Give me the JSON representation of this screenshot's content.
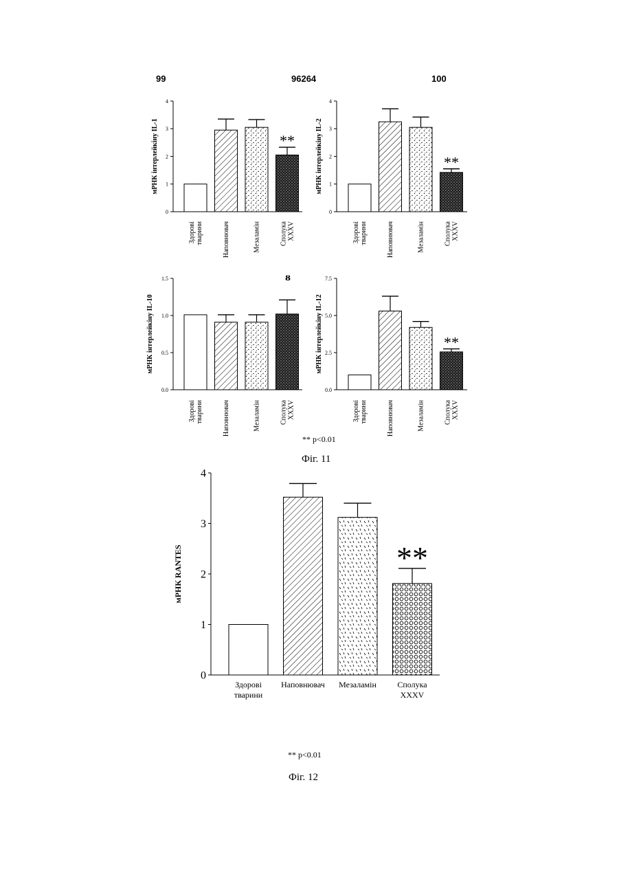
{
  "header": {
    "left_page": "99",
    "patent_number": "96264",
    "right_page": "100"
  },
  "fig11": {
    "caption": "Фіг. 11",
    "footnote": "** p<0.01",
    "stray_mark": "ᴕ"
  },
  "fig12": {
    "caption": "Фіг. 12",
    "footnote": "** p<0.01"
  },
  "chart_data": [
    {
      "id": "il1",
      "type": "bar",
      "ylabel": "мРНК інтерлейкіну IL-1",
      "ylim": [
        0,
        4
      ],
      "yticks": [
        "0",
        "1",
        "2",
        "3",
        "4"
      ],
      "ytick_values": [
        0,
        1,
        2,
        3,
        4
      ],
      "categories": [
        [
          "Здорові",
          "тварини"
        ],
        [
          "Наповнювач"
        ],
        [
          "Мезаламін"
        ],
        [
          "Сполука",
          "XXXV"
        ]
      ],
      "values": [
        1.0,
        2.95,
        3.05,
        2.05
      ],
      "errors": [
        0,
        0.4,
        0.28,
        0.28
      ],
      "significance": [
        "",
        "",
        "",
        "**"
      ],
      "patterns": [
        "white",
        "hatch",
        "dots",
        "dense"
      ]
    },
    {
      "id": "il2",
      "type": "bar",
      "ylabel": "мРНК інтерлейкіну IL-2",
      "ylim": [
        0,
        4
      ],
      "yticks": [
        "0",
        "1",
        "2",
        "3",
        "4"
      ],
      "ytick_values": [
        0,
        1,
        2,
        3,
        4
      ],
      "categories": [
        [
          "Здорові",
          "тварини"
        ],
        [
          "Наповнювач"
        ],
        [
          "Мезаламін"
        ],
        [
          "Сполука",
          "XXXV"
        ]
      ],
      "values": [
        1.0,
        3.25,
        3.05,
        1.42
      ],
      "errors": [
        0,
        0.47,
        0.37,
        0.13
      ],
      "significance": [
        "",
        "",
        "",
        "**"
      ],
      "patterns": [
        "white",
        "hatch",
        "dots",
        "dense"
      ]
    },
    {
      "id": "il10",
      "type": "bar",
      "ylabel": "мРНК інтерлейкіну IL-10",
      "ylim": [
        0,
        1.5
      ],
      "yticks": [
        "0.0",
        "0.5",
        "1.0",
        "1.5"
      ],
      "ytick_values": [
        0,
        0.5,
        1.0,
        1.5
      ],
      "categories": [
        [
          "Здорові",
          "тварини"
        ],
        [
          "Наповнювач"
        ],
        [
          "Мезаламін"
        ],
        [
          "Сполука",
          "XXXV"
        ]
      ],
      "values": [
        1.01,
        0.91,
        0.91,
        1.02
      ],
      "errors": [
        0,
        0.1,
        0.1,
        0.19
      ],
      "significance": [
        "",
        "",
        "",
        ""
      ],
      "patterns": [
        "white",
        "hatch",
        "dots",
        "dense"
      ]
    },
    {
      "id": "il12",
      "type": "bar",
      "ylabel": "мРНК інтерлейкіну IL-12",
      "ylim": [
        0,
        7.5
      ],
      "yticks": [
        "0.0",
        "2.5",
        "5.0",
        "7.5"
      ],
      "ytick_values": [
        0,
        2.5,
        5.0,
        7.5
      ],
      "categories": [
        [
          "Здорові",
          "тварини"
        ],
        [
          "Наповнювач"
        ],
        [
          "Мезаламін"
        ],
        [
          "Сполука",
          "XXXV"
        ]
      ],
      "values": [
        1.0,
        5.3,
        4.2,
        2.55
      ],
      "errors": [
        0,
        1.0,
        0.4,
        0.2
      ],
      "significance": [
        "",
        "",
        "",
        "**"
      ],
      "patterns": [
        "white",
        "hatch",
        "dots",
        "dense"
      ]
    },
    {
      "id": "rantes",
      "type": "bar",
      "ylabel": "мРНК RANTES",
      "ylim": [
        0,
        4
      ],
      "yticks": [
        "0",
        "1",
        "2",
        "3",
        "4"
      ],
      "ytick_values": [
        0,
        1,
        2,
        3,
        4
      ],
      "categories": [
        [
          "Здорові",
          "тварини"
        ],
        [
          "Наповнювач"
        ],
        [
          "Мезаламін"
        ],
        [
          "Сполука",
          "XXXV"
        ]
      ],
      "values": [
        1.0,
        3.52,
        3.12,
        1.81
      ],
      "errors": [
        0,
        0.27,
        0.28,
        0.3
      ],
      "significance": [
        "",
        "",
        "",
        "**"
      ],
      "patterns": [
        "white",
        "hatch",
        "dash",
        "circles"
      ]
    }
  ]
}
